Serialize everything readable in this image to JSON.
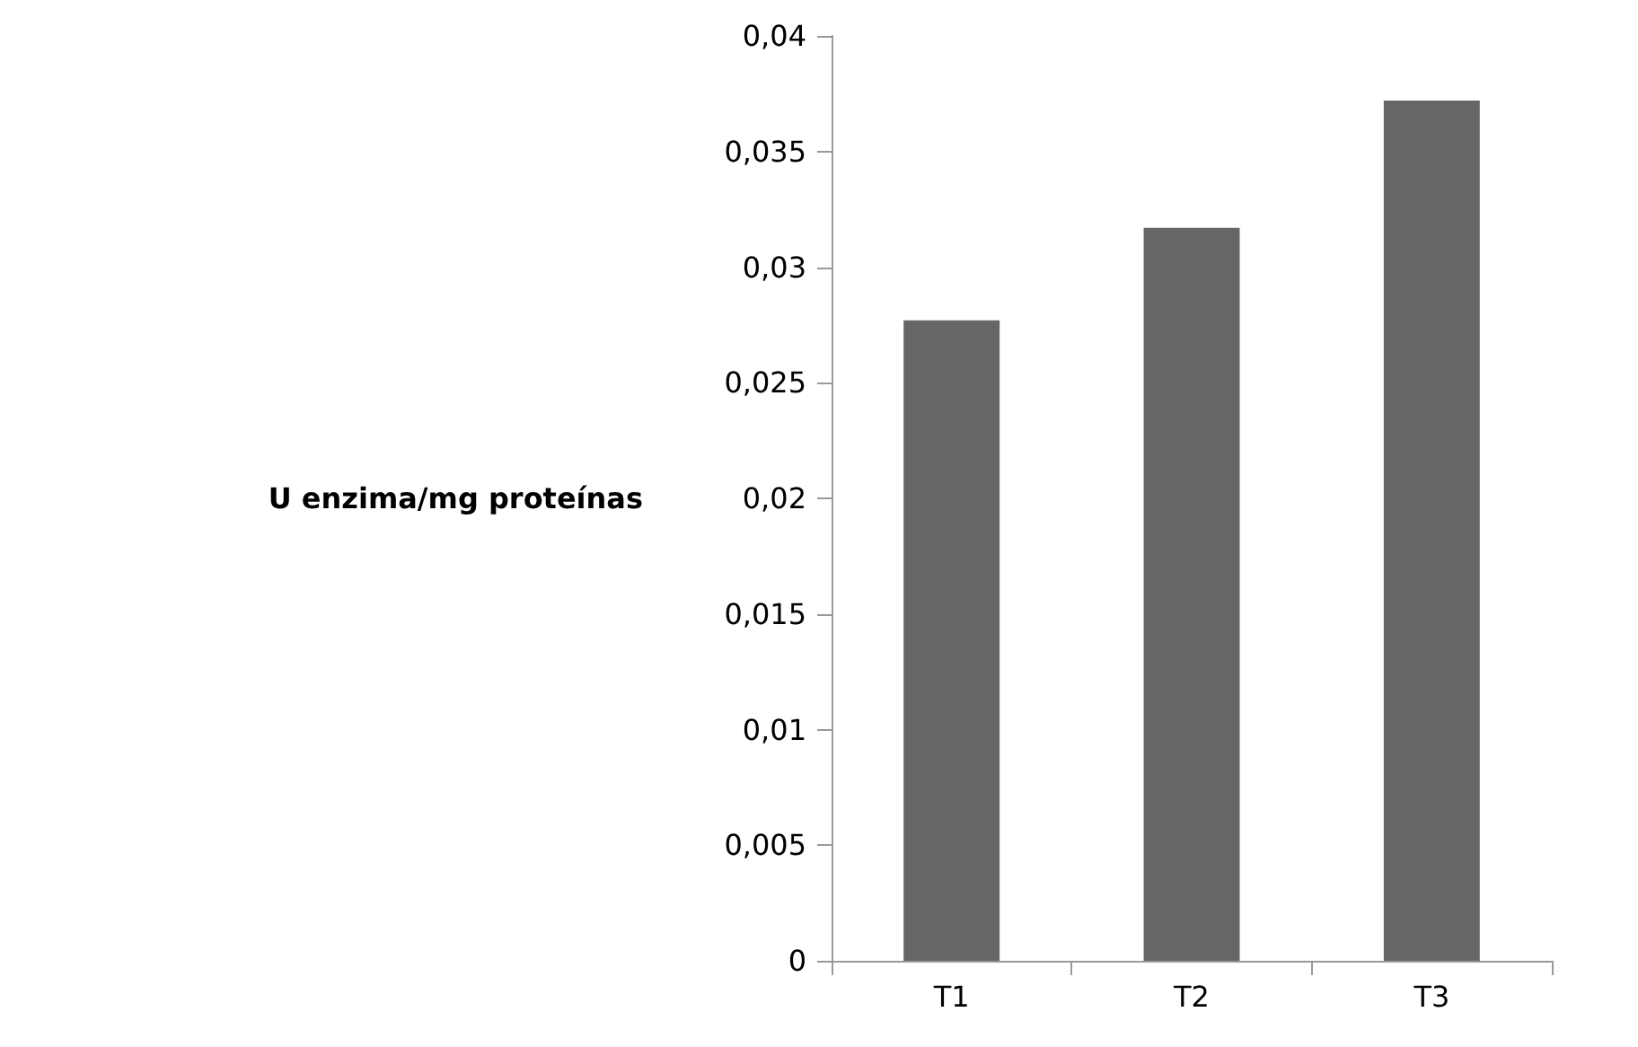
{
  "chart_data": {
    "type": "bar",
    "ylabel": "U enzima/mg proteínas",
    "categories": [
      "T1",
      "T2",
      "T3"
    ],
    "values": [
      0.0277,
      0.0317,
      0.0372
    ],
    "color": "#666666",
    "ylim": [
      0,
      0.04
    ],
    "yticks": [
      0,
      {
        "value": 0.005,
        "label": "0,005"
      },
      {
        "value": 0.01,
        "label": "0,01"
      },
      {
        "value": 0.015,
        "label": "0,015"
      },
      {
        "value": 0.02,
        "label": "0,02"
      },
      {
        "value": 0.025,
        "label": "0,025"
      },
      {
        "value": 0.03,
        "label": "0,03"
      },
      {
        "value": 0.035,
        "label": "0,035"
      },
      {
        "value": 0.04,
        "label": "0,04"
      }
    ],
    "grid": false
  }
}
